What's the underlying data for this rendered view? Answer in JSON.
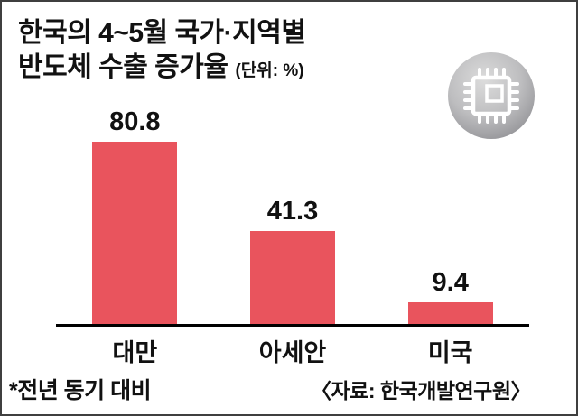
{
  "header": {
    "title_line1": "한국의 4~5월 국가·지역별",
    "title_line2": "반도체 수출 증가율",
    "unit": "(단위: %)",
    "icon": "semiconductor-chip-icon"
  },
  "chart_data": {
    "type": "bar",
    "title": "한국의 4~5월 국가·지역별 반도체 수출 증가율",
    "unit": "%",
    "categories": [
      "대만",
      "아세안",
      "미국"
    ],
    "values": [
      80.8,
      41.3,
      9.4
    ],
    "ylim": [
      0,
      90
    ],
    "grid": false,
    "legend": "none",
    "bar_color": "#e9545d",
    "value_label_color": "#111111",
    "axis_line_color": "#000000"
  },
  "footer": {
    "footnote": "*전년 동기 대비",
    "source": "〈자료: 한국개발연구원〉"
  }
}
